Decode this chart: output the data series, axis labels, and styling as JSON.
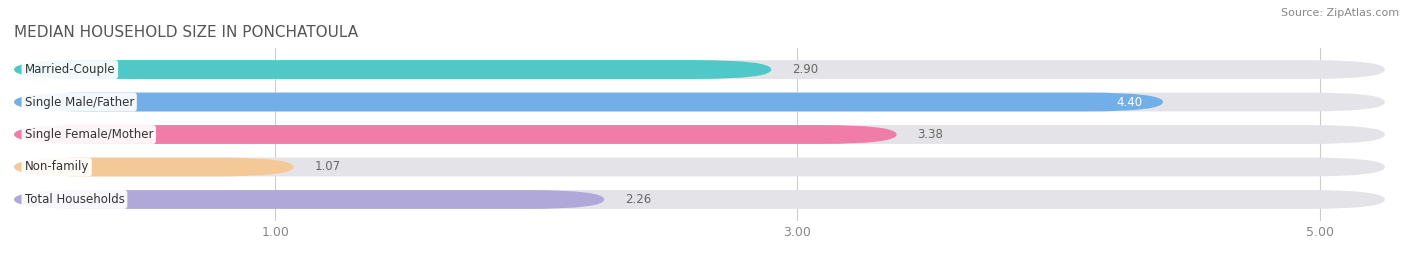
{
  "title": "MEDIAN HOUSEHOLD SIZE IN PONCHATOULA",
  "source": "Source: ZipAtlas.com",
  "categories": [
    "Married-Couple",
    "Single Male/Father",
    "Single Female/Mother",
    "Non-family",
    "Total Households"
  ],
  "values": [
    2.9,
    4.4,
    3.38,
    1.07,
    2.26
  ],
  "bar_colors": [
    "#50c8c8",
    "#72aee8",
    "#f07ca8",
    "#f5c898",
    "#b0a8d8"
  ],
  "bar_bg_color": "#e4e4e8",
  "background_color": "#ffffff",
  "xlim": [
    0.0,
    5.25
  ],
  "xstart": 0.0,
  "xticks": [
    1.0,
    3.0,
    5.0
  ],
  "xtick_labels": [
    "1.00",
    "3.00",
    "5.00"
  ],
  "bar_height": 0.58,
  "value_label_inside": [
    false,
    true,
    false,
    false,
    false
  ],
  "value_label_white": [
    false,
    true,
    false,
    false,
    false
  ],
  "title_fontsize": 11,
  "source_fontsize": 8,
  "label_fontsize": 8.5,
  "value_fontsize": 8.5
}
